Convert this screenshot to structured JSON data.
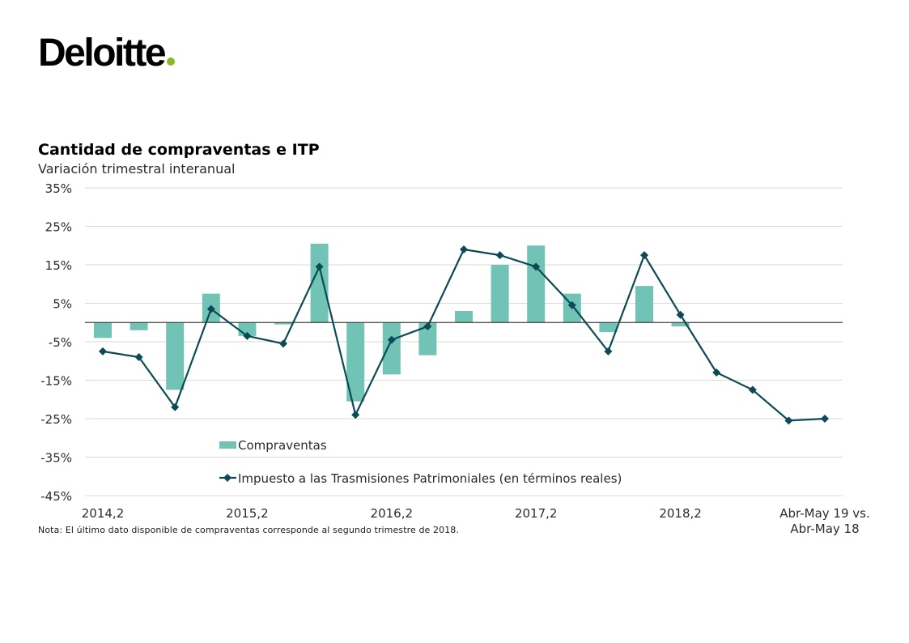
{
  "brand": {
    "logo_text": "Deloitte",
    "logo_dot_color": "#86BC25"
  },
  "colors": {
    "bar": "#70C3B5",
    "line": "#0C4A55",
    "grid": "#D9D9D9",
    "axis": "#404040"
  },
  "chart_data": {
    "type": "bar",
    "title": "Cantidad de compraventas e ITP",
    "subtitle": "Variación trimestral interanual",
    "ylim": [
      -45,
      35
    ],
    "y_ticks": [
      "35%",
      "25%",
      "15%",
      "5%",
      "-5%",
      "-15%",
      "-25%",
      "-35%",
      "-45%"
    ],
    "y_tick_values": [
      35,
      25,
      15,
      5,
      -5,
      -15,
      -25,
      -35,
      -45
    ],
    "x": [
      "2014,2",
      "2014,3",
      "2014,4",
      "2015,1",
      "2015,2",
      "2015,3",
      "2015,4",
      "2016,1",
      "2016,2",
      "2016,3",
      "2016,4",
      "2017,1",
      "2017,2",
      "2017,3",
      "2017,4",
      "2018,1",
      "2018,2",
      "2018,3",
      "2018,4",
      "2019,1",
      "Abr-May 19 vs. Abr-May 18"
    ],
    "x_tick_labels": [
      {
        "index": 0,
        "label": "2014,2"
      },
      {
        "index": 4,
        "label": "2015,2"
      },
      {
        "index": 8,
        "label": "2016,2"
      },
      {
        "index": 12,
        "label": "2017,2"
      },
      {
        "index": 16,
        "label": "2018,2"
      },
      {
        "index": 20,
        "label": "Abr-May 19 vs.",
        "label2": "Abr-May 18"
      }
    ],
    "grid": true,
    "legend_position": "bottom-left",
    "series": [
      {
        "name": "Compraventas",
        "type": "bar",
        "values": [
          -4,
          -2,
          -17.5,
          7.5,
          -3.5,
          -0.5,
          20.5,
          -20.5,
          -13.5,
          -8.5,
          3,
          15,
          20,
          7.5,
          -2.5,
          9.5,
          -1,
          null,
          null,
          null,
          null
        ]
      },
      {
        "name": "Impuesto a las Trasmisiones Patrimoniales (en términos reales)",
        "type": "line",
        "values": [
          -7.5,
          -9,
          -22,
          3.5,
          -3.5,
          -5.5,
          14.5,
          -24,
          -4.5,
          -1,
          19,
          17.5,
          14.5,
          4.5,
          -7.5,
          17.5,
          2,
          -13,
          -17.5,
          -25.5,
          -25
        ]
      }
    ]
  },
  "note": "Nota: El último dato disponible de compraventas corresponde al segundo trimestre de 2018."
}
